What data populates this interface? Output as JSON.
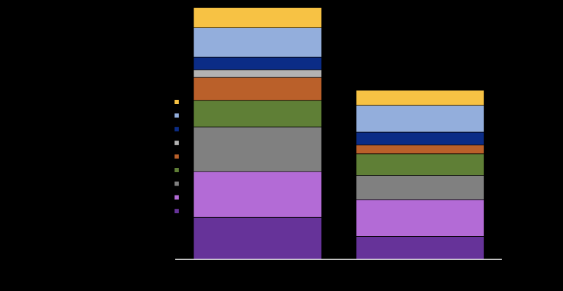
{
  "chart_data": {
    "type": "bar",
    "stacked": true,
    "title": "",
    "xlabel": "",
    "ylabel": "",
    "categories": [
      "",
      ""
    ],
    "ylim": [
      0,
      100
    ],
    "grid": false,
    "legend_position": "left",
    "series": [
      {
        "color": "#663399",
        "values": [
          16.5,
          9.0
        ]
      },
      {
        "color": "#B36BD6",
        "values": [
          18.0,
          14.5
        ]
      },
      {
        "color": "#808080",
        "values": [
          17.5,
          9.5
        ]
      },
      {
        "color": "#5F7F36",
        "values": [
          10.5,
          8.5
        ]
      },
      {
        "color": "#BA602A",
        "values": [
          9.0,
          3.5
        ]
      },
      {
        "color": "#B3B3B3",
        "values": [
          3.0,
          0.0
        ]
      },
      {
        "color": "#0B2C86",
        "values": [
          5.0,
          5.0
        ]
      },
      {
        "color": "#93AEDC",
        "values": [
          11.5,
          10.5
        ]
      },
      {
        "color": "#F7C244",
        "values": [
          8.0,
          6.0
        ]
      }
    ]
  }
}
